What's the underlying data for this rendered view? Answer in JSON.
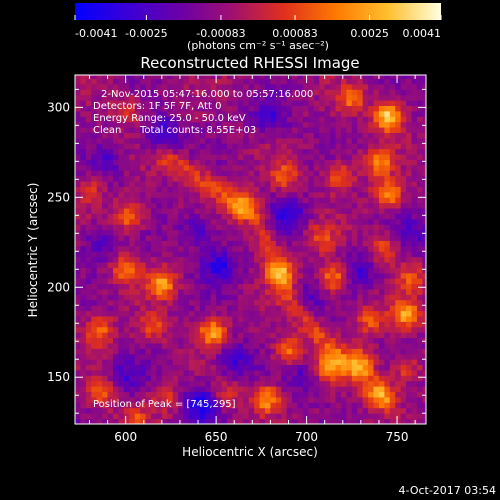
{
  "colorbar": {
    "ticks": [
      "-0.0041",
      "-0.0025",
      "-0.00083",
      "0.00083",
      "0.0025",
      "0.0041"
    ],
    "units": "(photons cm⁻² s⁻¹ asec⁻²)",
    "min": -0.0041,
    "max": 0.0041,
    "colors": [
      "#0000ff",
      "#3a00d8",
      "#6a00a8",
      "#a01070",
      "#e0301c",
      "#ff7a00",
      "#ffc030",
      "#ffffe0"
    ]
  },
  "footer": {
    "date": "4-Oct-2017 03:54"
  },
  "chart_data": {
    "type": "heatmap",
    "title": "Reconstructed RHESSI Image",
    "xlabel": "Heliocentric X (arcsec)",
    "ylabel": "Heliocentric Y (arcsec)",
    "xlim": [
      572,
      766
    ],
    "ylim": [
      124,
      318
    ],
    "xticks": [
      600,
      650,
      700,
      750
    ],
    "yticks": [
      150,
      200,
      250,
      300
    ],
    "annotations": [
      "2-Nov-2015 05:47:16.000 to 05:57:16.000",
      "Detectors: 1F 5F 7F, Att 0",
      "Energy Range: 25.0 - 50.0 keV",
      "Clean",
      "Total counts: 8.55E+03"
    ],
    "peak_label": "Position of Peak = [745,295]",
    "peak": [
      745,
      295
    ],
    "background_level": -0.0009,
    "ridge": [
      [
        622,
        272
      ],
      [
        650,
        255
      ],
      [
        672,
        240
      ],
      [
        680,
        218
      ],
      [
        688,
        198
      ],
      [
        702,
        178
      ],
      [
        725,
        155
      ],
      [
        745,
        138
      ]
    ],
    "ridge_level": 0.0016,
    "sources": [
      {
        "x": 745,
        "y": 295,
        "peak": 0.0041
      },
      {
        "x": 725,
        "y": 305,
        "peak": 0.0022
      },
      {
        "x": 600,
        "y": 298,
        "peak": 0.0016
      },
      {
        "x": 740,
        "y": 270,
        "peak": 0.0026
      },
      {
        "x": 745,
        "y": 252,
        "peak": 0.003
      },
      {
        "x": 718,
        "y": 262,
        "peak": 0.0022
      },
      {
        "x": 580,
        "y": 255,
        "peak": 0.0014
      },
      {
        "x": 602,
        "y": 240,
        "peak": 0.0026
      },
      {
        "x": 665,
        "y": 245,
        "peak": 0.0022
      },
      {
        "x": 688,
        "y": 262,
        "peak": 0.002
      },
      {
        "x": 600,
        "y": 210,
        "peak": 0.0024
      },
      {
        "x": 620,
        "y": 202,
        "peak": 0.003
      },
      {
        "x": 686,
        "y": 208,
        "peak": 0.0024
      },
      {
        "x": 708,
        "y": 228,
        "peak": 0.0018
      },
      {
        "x": 715,
        "y": 205,
        "peak": 0.0028
      },
      {
        "x": 742,
        "y": 222,
        "peak": 0.0022
      },
      {
        "x": 758,
        "y": 205,
        "peak": 0.0018
      },
      {
        "x": 755,
        "y": 185,
        "peak": 0.0032
      },
      {
        "x": 735,
        "y": 182,
        "peak": 0.002
      },
      {
        "x": 585,
        "y": 176,
        "peak": 0.0024
      },
      {
        "x": 615,
        "y": 178,
        "peak": 0.0018
      },
      {
        "x": 648,
        "y": 175,
        "peak": 0.0032
      },
      {
        "x": 690,
        "y": 165,
        "peak": 0.0024
      },
      {
        "x": 712,
        "y": 155,
        "peak": 0.003
      },
      {
        "x": 730,
        "y": 158,
        "peak": 0.0026
      },
      {
        "x": 755,
        "y": 155,
        "peak": 0.0018
      },
      {
        "x": 588,
        "y": 142,
        "peak": 0.0022
      },
      {
        "x": 622,
        "y": 140,
        "peak": 0.0016
      },
      {
        "x": 655,
        "y": 140,
        "peak": 0.0016
      },
      {
        "x": 678,
        "y": 138,
        "peak": 0.003
      },
      {
        "x": 605,
        "y": 128,
        "peak": 0.0016
      },
      {
        "x": 740,
        "y": 140,
        "peak": 0.002
      }
    ],
    "holes": [
      {
        "x": 620,
        "y": 285,
        "depth": -0.0022
      },
      {
        "x": 680,
        "y": 295,
        "depth": -0.0018
      },
      {
        "x": 690,
        "y": 240,
        "depth": -0.002
      },
      {
        "x": 652,
        "y": 212,
        "depth": -0.0022
      },
      {
        "x": 640,
        "y": 232,
        "depth": -0.0016
      },
      {
        "x": 700,
        "y": 195,
        "depth": -0.0012
      },
      {
        "x": 700,
        "y": 150,
        "depth": -0.0014
      },
      {
        "x": 660,
        "y": 160,
        "depth": -0.0018
      },
      {
        "x": 642,
        "y": 135,
        "depth": -0.0028
      },
      {
        "x": 600,
        "y": 150,
        "depth": -0.0014
      },
      {
        "x": 760,
        "y": 230,
        "depth": -0.0012
      },
      {
        "x": 585,
        "y": 225,
        "depth": -0.0014
      },
      {
        "x": 730,
        "y": 210,
        "depth": -0.0016
      },
      {
        "x": 590,
        "y": 270,
        "depth": -0.0012
      }
    ]
  }
}
